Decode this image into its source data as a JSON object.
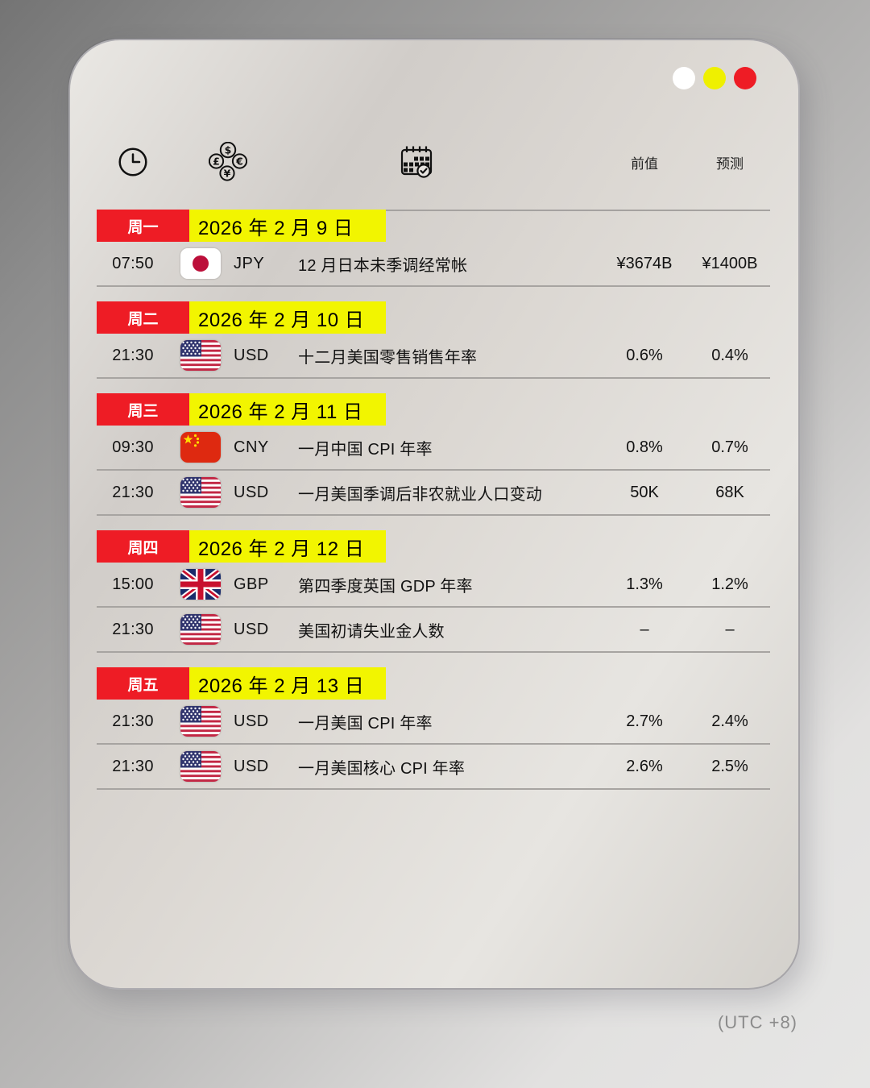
{
  "window": {
    "controls": [
      {
        "name": "window-dot-white",
        "color": "#FFFFFF"
      },
      {
        "name": "window-dot-yellow",
        "color": "#EFF000"
      },
      {
        "name": "window-dot-red",
        "color": "#EE1C25"
      }
    ]
  },
  "header": {
    "time_icon": "clock-icon",
    "currency_icon": "currency-exchange-icon",
    "event_icon": "calendar-check-icon",
    "previous_label": "前值",
    "forecast_label": "预测"
  },
  "days": [
    {
      "weekday": "周一",
      "date": "2026 年 2 月 9 日",
      "events": [
        {
          "time": "07:50",
          "flag": "japan",
          "currency": "JPY",
          "name": "12 月日本未季调经常帐",
          "previous": "¥3674B",
          "forecast": "¥1400B"
        }
      ]
    },
    {
      "weekday": "周二",
      "date": "2026 年 2 月 10 日",
      "events": [
        {
          "time": "21:30",
          "flag": "usa",
          "currency": "USD",
          "name": "十二月美国零售销售年率",
          "previous": "0.6%",
          "forecast": "0.4%"
        }
      ]
    },
    {
      "weekday": "周三",
      "date": "2026 年 2 月 11 日",
      "events": [
        {
          "time": "09:30",
          "flag": "china",
          "currency": "CNY",
          "name": "一月中国 CPI 年率",
          "previous": "0.8%",
          "forecast": "0.7%"
        },
        {
          "time": "21:30",
          "flag": "usa",
          "currency": "USD",
          "name": "一月美国季调后非农就业人口变动",
          "previous": "50K",
          "forecast": "68K"
        }
      ]
    },
    {
      "weekday": "周四",
      "date": "2026 年 2 月 12 日",
      "events": [
        {
          "time": "15:00",
          "flag": "uk",
          "currency": "GBP",
          "name": "第四季度英国 GDP 年率",
          "previous": "1.3%",
          "forecast": "1.2%"
        },
        {
          "time": "21:30",
          "flag": "usa",
          "currency": "USD",
          "name": "美国初请失业金人数",
          "previous": "–",
          "forecast": "–"
        }
      ]
    },
    {
      "weekday": "周五",
      "date": "2026 年 2 月 13 日",
      "events": [
        {
          "time": "21:30",
          "flag": "usa",
          "currency": "USD",
          "name": "一月美国 CPI 年率",
          "previous": "2.7%",
          "forecast": "2.4%"
        },
        {
          "time": "21:30",
          "flag": "usa",
          "currency": "USD",
          "name": "一月美国核心 CPI 年率",
          "previous": "2.6%",
          "forecast": "2.5%"
        }
      ]
    }
  ],
  "footer": {
    "timezone_note": "(UTC +8)"
  },
  "colors": {
    "day_badge_red": "#EE1C25",
    "date_badge_yellow": "#F2F500",
    "traffic_white": "#FFFFFF",
    "traffic_yellow": "#EFF000",
    "traffic_red": "#EE1C25",
    "separator_gray": "#A5A2A0",
    "timezone_text_gray": "#8B8B8B"
  }
}
